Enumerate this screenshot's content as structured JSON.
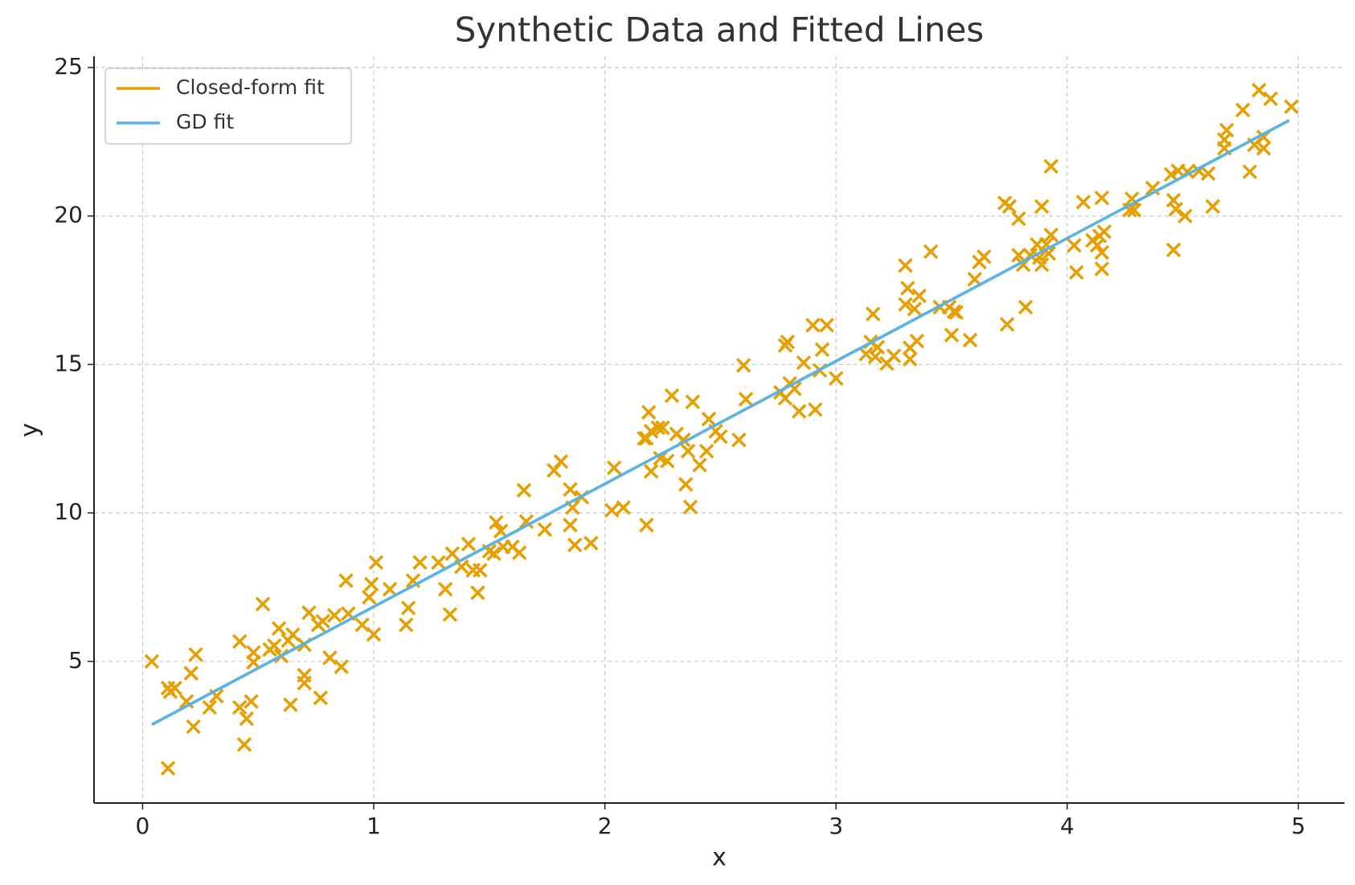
{
  "chart_data": {
    "type": "scatter",
    "title": "Synthetic Data and Fitted Lines",
    "xlabel": "x",
    "ylabel": "y",
    "xlim": [
      -0.21,
      5.2
    ],
    "ylim": [
      0.23,
      25.38
    ],
    "xticks": [
      0,
      1,
      2,
      3,
      4,
      5
    ],
    "yticks": [
      5,
      10,
      15,
      20,
      25
    ],
    "grid": true,
    "legend": "upper left",
    "color": "#E69F00",
    "x": [
      0.04,
      0.11,
      0.11,
      0.12,
      0.14,
      0.19,
      0.21,
      0.23,
      0.22,
      0.29,
      0.32,
      0.42,
      0.42,
      0.45,
      0.44,
      0.47,
      0.48,
      0.48,
      0.52,
      0.55,
      0.57,
      0.59,
      0.6,
      0.63,
      0.65,
      0.64,
      0.7,
      0.7,
      0.7,
      0.72,
      0.76,
      0.77,
      0.78,
      0.81,
      0.83,
      0.86,
      0.88,
      0.89,
      0.95,
      0.98,
      0.99,
      1.0,
      1.01,
      1.07,
      1.14,
      1.15,
      1.17,
      1.2,
      1.28,
      1.31,
      1.33,
      1.34,
      1.38,
      1.41,
      1.43,
      1.45,
      1.46,
      1.5,
      1.53,
      1.52,
      1.55,
      1.56,
      1.6,
      1.63,
      1.65,
      1.66,
      1.74,
      1.78,
      1.81,
      1.85,
      1.85,
      1.86,
      1.87,
      1.9,
      1.94,
      2.04,
      2.03,
      2.08,
      2.17,
      2.18,
      2.18,
      2.19,
      2.2,
      2.2,
      2.23,
      2.24,
      2.25,
      2.27,
      2.29,
      2.31,
      2.34,
      2.35,
      2.36,
      2.37,
      2.38,
      2.41,
      2.44,
      2.45,
      2.48,
      2.5,
      2.58,
      2.6,
      2.61,
      2.76,
      2.78,
      2.78,
      2.79,
      2.8,
      2.82,
      2.84,
      2.86,
      2.9,
      2.91,
      2.93,
      2.94,
      2.96,
      3.0,
      3.13,
      3.15,
      3.16,
      3.17,
      3.18,
      3.22,
      3.25,
      3.3,
      3.31,
      3.3,
      3.32,
      3.32,
      3.34,
      3.35,
      3.36,
      3.41,
      3.45,
      3.49,
      3.5,
      3.51,
      3.52,
      3.58,
      3.6,
      3.62,
      3.64,
      3.73,
      3.75,
      3.74,
      3.79,
      3.79,
      3.81,
      3.82,
      3.84,
      3.87,
      3.88,
      3.89,
      3.89,
      3.91,
      3.92,
      3.93,
      3.93,
      4.03,
      4.04,
      4.07,
      4.11,
      4.13,
      4.15,
      4.14,
      4.15,
      4.15,
      4.16,
      4.27,
      4.28,
      4.29,
      4.37,
      4.45,
      4.46,
      4.46,
      4.47,
      4.48,
      4.51,
      4.52,
      4.57,
      4.61,
      4.63,
      4.68,
      4.68,
      4.69,
      4.76,
      4.79,
      4.81,
      4.83,
      4.85,
      4.85,
      4.88,
      4.97
    ],
    "y": [
      5.0,
      1.4,
      4.1,
      3.98,
      4.1,
      3.65,
      4.6,
      5.23,
      2.8,
      3.45,
      3.83,
      3.45,
      5.67,
      3.07,
      2.2,
      3.65,
      4.97,
      5.3,
      6.93,
      5.4,
      5.53,
      6.11,
      5.18,
      5.7,
      5.9,
      3.54,
      4.53,
      4.27,
      5.56,
      6.64,
      6.23,
      3.77,
      6.35,
      5.12,
      6.55,
      4.82,
      7.72,
      6.61,
      6.23,
      7.16,
      7.6,
      5.91,
      8.33,
      7.43,
      6.23,
      6.8,
      7.72,
      8.33,
      8.33,
      7.43,
      6.58,
      8.63,
      8.19,
      8.95,
      8.07,
      7.31,
      8.07,
      8.71,
      9.68,
      8.63,
      9.39,
      8.86,
      8.86,
      8.66,
      10.76,
      9.71,
      9.44,
      11.43,
      11.73,
      10.79,
      9.59,
      10.18,
      8.92,
      10.53,
      8.98,
      11.52,
      10.09,
      10.18,
      12.51,
      12.51,
      9.59,
      13.39,
      11.4,
      12.75,
      12.87,
      11.84,
      12.87,
      11.75,
      13.95,
      12.66,
      12.46,
      10.96,
      12.08,
      10.2,
      13.74,
      11.61,
      12.08,
      13.16,
      12.75,
      12.57,
      12.46,
      14.97,
      13.83,
      14.06,
      13.86,
      15.64,
      15.76,
      14.36,
      14.18,
      13.42,
      15.06,
      16.32,
      13.48,
      14.8,
      15.5,
      16.32,
      14.53,
      15.35,
      15.76,
      16.7,
      15.26,
      15.58,
      15.03,
      15.29,
      18.33,
      17.57,
      17.02,
      15.56,
      15.18,
      16.87,
      15.79,
      17.31,
      18.8,
      16.93,
      16.93,
      15.99,
      16.78,
      16.75,
      15.82,
      17.87,
      18.45,
      18.63,
      20.44,
      20.32,
      16.35,
      19.91,
      18.68,
      18.36,
      16.93,
      18.68,
      19.04,
      18.6,
      20.32,
      18.36,
      19.04,
      18.74,
      19.36,
      21.67,
      19.01,
      18.1,
      20.47,
      19.18,
      19.01,
      20.61,
      19.33,
      18.77,
      18.22,
      19.47,
      20.2,
      20.58,
      20.2,
      20.94,
      21.4,
      20.53,
      18.86,
      20.23,
      21.52,
      20.0,
      21.49,
      21.52,
      21.43,
      20.32,
      22.57,
      22.28,
      22.89,
      23.57,
      21.49,
      22.4,
      24.24,
      22.66,
      22.28,
      23.95,
      23.68
    ],
    "lines": [
      {
        "name": "Closed-form fit",
        "color": "#E69F00",
        "x": [
          0.04,
          4.96
        ],
        "y": [
          2.87,
          23.22
        ]
      },
      {
        "name": "GD fit",
        "color": "#56B4E9",
        "x": [
          0.04,
          4.96
        ],
        "y": [
          2.87,
          23.22
        ]
      }
    ]
  }
}
